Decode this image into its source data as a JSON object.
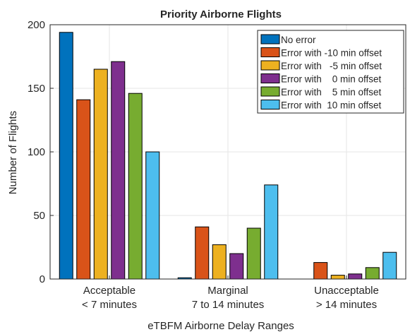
{
  "chart_data": {
    "type": "bar",
    "title": "Priority Airborne Flights",
    "xlabel": "eTBFM Airborne Delay Ranges",
    "ylabel": "Number of Flights",
    "ylim": [
      0,
      200
    ],
    "yticks": [
      0,
      50,
      100,
      150,
      200
    ],
    "grid": true,
    "legend_position": "top-right",
    "categories": [
      {
        "line1": "Acceptable",
        "line2": "< 7 minutes"
      },
      {
        "line1": "Marginal",
        "line2": "7 to 14 minutes"
      },
      {
        "line1": "Unacceptable",
        "line2": "> 14 minutes"
      }
    ],
    "series": [
      {
        "name": "No error",
        "color": "#0072BD",
        "values": [
          194,
          1,
          0
        ]
      },
      {
        "name": "Error with -10 min offset",
        "color": "#D95319",
        "values": [
          141,
          41,
          13
        ]
      },
      {
        "name": "Error with   -5 min offset",
        "color": "#EDB120",
        "values": [
          165,
          27,
          3
        ]
      },
      {
        "name": "Error with    0 min offset",
        "color": "#7E2F8E",
        "values": [
          171,
          20,
          4
        ]
      },
      {
        "name": "Error with    5 min offset",
        "color": "#77AC30",
        "values": [
          146,
          40,
          9
        ]
      },
      {
        "name": "Error with  10 min offset",
        "color": "#4DBEEE",
        "values": [
          100,
          74,
          21
        ]
      }
    ]
  }
}
